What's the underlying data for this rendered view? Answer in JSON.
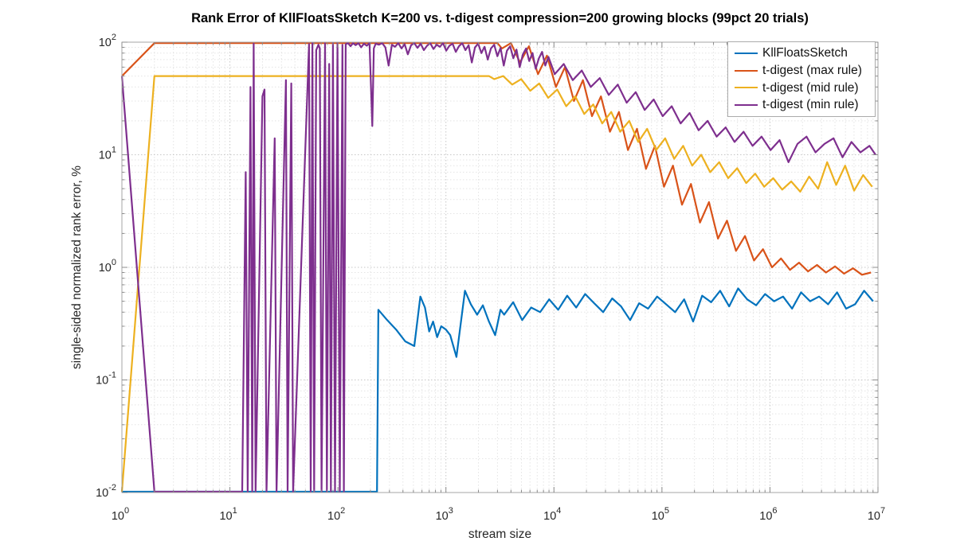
{
  "figure_title": "Rank Error of KllFloatsSketch K=200 vs. t-digest compression=200 growing blocks (99pct 20 trials)",
  "axes_style": {
    "frame_color": "#a6a6a6",
    "tick_color": "#8c8c8c",
    "grid_major_color": "#c6c6c6",
    "grid_minor_color": "#e4e4e4",
    "tick_label_color": "#262626",
    "background": "#ffffff"
  },
  "legend": {
    "position": "top-right",
    "items": [
      "KllFloatsSketch",
      "t-digest (max rule)",
      "t-digest (mid rule)",
      "t-digest (min rule)"
    ]
  },
  "chart_data": {
    "type": "line",
    "title": "Rank Error of KllFloatsSketch K=200 vs. t-digest compression=200 growing blocks (99pct 20 trials)",
    "xlabel": "stream size",
    "ylabel": "single-sided normalized rank error, %",
    "x_scale": "log",
    "y_scale": "log",
    "xlim": [
      1,
      10000000
    ],
    "ylim": [
      0.01,
      100
    ],
    "x_tick_labels": [
      "10^0",
      "10^1",
      "10^2",
      "10^3",
      "10^4",
      "10^5",
      "10^6",
      "10^7"
    ],
    "y_tick_labels": [
      "10^-2",
      "10^-1",
      "10^0",
      "10^1",
      "10^2"
    ],
    "grid": "major and minor, dotted",
    "legend_position": "top-right",
    "series": [
      {
        "name": "KllFloatsSketch",
        "color": "#0072BD",
        "points": [
          [
            1,
            0.01
          ],
          [
            230,
            0.01
          ],
          [
            237,
            0.42
          ],
          [
            286,
            0.34
          ],
          [
            346,
            0.28
          ],
          [
            420,
            0.22
          ],
          [
            509,
            0.2
          ],
          [
            580,
            0.55
          ],
          [
            640,
            0.44
          ],
          [
            700,
            0.27
          ],
          [
            760,
            0.33
          ],
          [
            830,
            0.24
          ],
          [
            904,
            0.3
          ],
          [
            1000,
            0.28
          ],
          [
            1095,
            0.25
          ],
          [
            1250,
            0.16
          ],
          [
            1500,
            0.62
          ],
          [
            1700,
            0.47
          ],
          [
            1947,
            0.38
          ],
          [
            2200,
            0.46
          ],
          [
            2500,
            0.33
          ],
          [
            2858,
            0.25
          ],
          [
            3200,
            0.42
          ],
          [
            3462,
            0.38
          ],
          [
            4194,
            0.49
          ],
          [
            5081,
            0.34
          ],
          [
            6155,
            0.44
          ],
          [
            7457,
            0.4
          ],
          [
            9033,
            0.52
          ],
          [
            10943,
            0.42
          ],
          [
            13257,
            0.56
          ],
          [
            16060,
            0.44
          ],
          [
            19456,
            0.58
          ],
          [
            23570,
            0.48
          ],
          [
            28554,
            0.4
          ],
          [
            34592,
            0.53
          ],
          [
            41907,
            0.45
          ],
          [
            50768,
            0.34
          ],
          [
            61503,
            0.48
          ],
          [
            74508,
            0.43
          ],
          [
            90263,
            0.55
          ],
          [
            109350,
            0.47
          ],
          [
            132470,
            0.4
          ],
          [
            160480,
            0.52
          ],
          [
            194410,
            0.33
          ],
          [
            235520,
            0.56
          ],
          [
            285320,
            0.49
          ],
          [
            345650,
            0.62
          ],
          [
            418740,
            0.45
          ],
          [
            507280,
            0.65
          ],
          [
            614540,
            0.52
          ],
          [
            744480,
            0.46
          ],
          [
            901900,
            0.58
          ],
          [
            1092600,
            0.5
          ],
          [
            1323600,
            0.55
          ],
          [
            1603500,
            0.43
          ],
          [
            1942500,
            0.6
          ],
          [
            2353200,
            0.5
          ],
          [
            2850800,
            0.55
          ],
          [
            3453600,
            0.47
          ],
          [
            4183900,
            0.6
          ],
          [
            5068600,
            0.43
          ],
          [
            6140400,
            0.47
          ],
          [
            7438800,
            0.62
          ],
          [
            9011800,
            0.5
          ]
        ]
      },
      {
        "name": "t-digest (max rule)",
        "color": "#D95319",
        "points": [
          [
            1,
            50
          ],
          [
            2,
            100
          ],
          [
            3000,
            100
          ],
          [
            3300,
            88
          ],
          [
            4000,
            100
          ],
          [
            4850,
            66
          ],
          [
            5870,
            92
          ],
          [
            7120,
            52
          ],
          [
            8620,
            76
          ],
          [
            10440,
            40
          ],
          [
            12650,
            60
          ],
          [
            15330,
            30
          ],
          [
            18570,
            46
          ],
          [
            22500,
            22
          ],
          [
            27260,
            33
          ],
          [
            33020,
            16
          ],
          [
            40010,
            24
          ],
          [
            48470,
            11
          ],
          [
            58720,
            17
          ],
          [
            71140,
            7.5
          ],
          [
            86190,
            12
          ],
          [
            104420,
            5.2
          ],
          [
            126500,
            8
          ],
          [
            153260,
            3.6
          ],
          [
            185680,
            5.5
          ],
          [
            224960,
            2.5
          ],
          [
            272550,
            3.8
          ],
          [
            330200,
            1.8
          ],
          [
            400060,
            2.6
          ],
          [
            484670,
            1.4
          ],
          [
            587190,
            1.9
          ],
          [
            711380,
            1.15
          ],
          [
            861870,
            1.45
          ],
          [
            1044180,
            1.0
          ],
          [
            1265070,
            1.2
          ],
          [
            1532620,
            0.95
          ],
          [
            1856830,
            1.1
          ],
          [
            2249620,
            0.92
          ],
          [
            2725500,
            1.05
          ],
          [
            3302030,
            0.9
          ],
          [
            4000600,
            1.02
          ],
          [
            4846700,
            0.88
          ],
          [
            5871900,
            0.98
          ],
          [
            7113800,
            0.86
          ],
          [
            8618700,
            0.9
          ]
        ]
      },
      {
        "name": "t-digest (mid rule)",
        "color": "#EDB120",
        "points": [
          [
            1,
            0.01
          ],
          [
            2,
            50
          ],
          [
            2500,
            50
          ],
          [
            2800,
            47
          ],
          [
            3392,
            50
          ],
          [
            4110,
            42
          ],
          [
            4979,
            47
          ],
          [
            6032,
            37
          ],
          [
            7308,
            43
          ],
          [
            8853,
            32
          ],
          [
            10725,
            38
          ],
          [
            12993,
            27
          ],
          [
            15740,
            33
          ],
          [
            19069,
            23
          ],
          [
            23101,
            28
          ],
          [
            27986,
            19
          ],
          [
            33904,
            24
          ],
          [
            41073,
            16
          ],
          [
            49758,
            20
          ],
          [
            60280,
            13
          ],
          [
            73026,
            17
          ],
          [
            88468,
            11
          ],
          [
            107175,
            14
          ],
          [
            129838,
            9.2
          ],
          [
            157294,
            12
          ],
          [
            190555,
            8.0
          ],
          [
            230850,
            10
          ],
          [
            279666,
            7.0
          ],
          [
            338805,
            8.6
          ],
          [
            410448,
            6.2
          ],
          [
            497241,
            7.6
          ],
          [
            602387,
            5.6
          ],
          [
            729767,
            6.8
          ],
          [
            884082,
            5.2
          ],
          [
            1071030,
            6.2
          ],
          [
            1297510,
            4.9
          ],
          [
            1571880,
            5.8
          ],
          [
            1904260,
            4.7
          ],
          [
            2306930,
            6.4
          ],
          [
            2794740,
            5.0
          ],
          [
            3385700,
            8.6
          ],
          [
            4101640,
            5.4
          ],
          [
            4968980,
            8.0
          ],
          [
            6019730,
            4.8
          ],
          [
            7292670,
            6.6
          ],
          [
            8834820,
            5.2
          ]
        ]
      },
      {
        "name": "t-digest (min rule)",
        "color": "#7E2F8E",
        "points": [
          [
            1,
            50
          ],
          [
            2,
            0.01
          ],
          [
            13,
            0.01
          ],
          [
            14,
            7
          ],
          [
            14.6,
            0.01
          ],
          [
            15.5,
            40
          ],
          [
            16.1,
            0.01
          ],
          [
            16.6,
            97
          ],
          [
            17.3,
            0.01
          ],
          [
            20,
            33
          ],
          [
            20.9,
            38
          ],
          [
            21.8,
            0.01
          ],
          [
            26,
            14
          ],
          [
            27,
            0.01
          ],
          [
            33,
            46
          ],
          [
            34.2,
            0.01
          ],
          [
            37,
            43
          ],
          [
            38.5,
            0.01
          ],
          [
            54,
            96
          ],
          [
            56,
            0.01
          ],
          [
            58,
            100
          ],
          [
            60.2,
            0.01
          ],
          [
            63,
            85
          ],
          [
            66,
            95
          ],
          [
            68,
            88
          ],
          [
            70.5,
            0.01
          ],
          [
            76,
            100
          ],
          [
            79,
            0.01
          ],
          [
            83,
            64
          ],
          [
            86,
            0.01
          ],
          [
            90,
            100
          ],
          [
            94,
            0.01
          ],
          [
            99,
            100
          ],
          [
            104,
            0.01
          ],
          [
            110,
            95
          ],
          [
            113.5,
            0.01
          ],
          [
            118,
            96
          ],
          [
            124,
            100
          ],
          [
            131,
            92
          ],
          [
            138,
            99
          ],
          [
            146,
            94
          ],
          [
            155,
            100
          ],
          [
            164,
            90
          ],
          [
            174,
            97
          ],
          [
            185,
            93
          ],
          [
            196,
            99
          ],
          [
            208,
            18
          ],
          [
            215,
            88
          ],
          [
            224,
            97
          ],
          [
            240,
            95
          ],
          [
            257,
            99
          ],
          [
            275,
            90
          ],
          [
            295,
            62
          ],
          [
            316,
            95
          ],
          [
            338,
            91
          ],
          [
            362,
            99
          ],
          [
            388,
            88
          ],
          [
            415,
            96
          ],
          [
            444,
            78
          ],
          [
            476,
            94
          ],
          [
            509,
            99
          ],
          [
            545,
            89
          ],
          [
            584,
            97
          ],
          [
            625,
            85
          ],
          [
            669,
            93
          ],
          [
            716,
            99
          ],
          [
            767,
            87
          ],
          [
            821,
            95
          ],
          [
            879,
            91
          ],
          [
            941,
            98
          ],
          [
            1007,
            84
          ],
          [
            1078,
            93
          ],
          [
            1154,
            97
          ],
          [
            1235,
            82
          ],
          [
            1322,
            92
          ],
          [
            1415,
            99
          ],
          [
            1515,
            85
          ],
          [
            1622,
            94
          ],
          [
            1736,
            66
          ],
          [
            1858,
            90
          ],
          [
            1989,
            97
          ],
          [
            2129,
            80
          ],
          [
            2279,
            91
          ],
          [
            2440,
            70
          ],
          [
            2612,
            88
          ],
          [
            2796,
            95
          ],
          [
            2993,
            75
          ],
          [
            3204,
            89
          ],
          [
            3430,
            62
          ],
          [
            3671,
            84
          ],
          [
            3930,
            92
          ],
          [
            4207,
            72
          ],
          [
            4503,
            86
          ],
          [
            4820,
            60
          ],
          [
            5160,
            78
          ],
          [
            5523,
            88
          ],
          [
            5912,
            68
          ],
          [
            6329,
            80
          ],
          [
            6775,
            58
          ],
          [
            7252,
            72
          ],
          [
            7763,
            82
          ],
          [
            8310,
            62
          ],
          [
            8895,
            74
          ],
          [
            10180,
            52
          ],
          [
            12330,
            64
          ],
          [
            14940,
            46
          ],
          [
            18100,
            56
          ],
          [
            21920,
            40
          ],
          [
            26550,
            48
          ],
          [
            32160,
            34
          ],
          [
            38960,
            42
          ],
          [
            47190,
            29
          ],
          [
            57160,
            36
          ],
          [
            69230,
            25
          ],
          [
            83860,
            31
          ],
          [
            101570,
            22
          ],
          [
            123030,
            27
          ],
          [
            149020,
            19
          ],
          [
            180500,
            23.5
          ],
          [
            218630,
            16.5
          ],
          [
            264820,
            20
          ],
          [
            320760,
            14.5
          ],
          [
            388520,
            17.5
          ],
          [
            470600,
            13
          ],
          [
            570000,
            16
          ],
          [
            690440,
            12
          ],
          [
            836250,
            14.5
          ],
          [
            1012860,
            11
          ],
          [
            1226830,
            13.5
          ],
          [
            1486010,
            8.6
          ],
          [
            1799950,
            12.5
          ],
          [
            2180230,
            14.5
          ],
          [
            2640850,
            10.5
          ],
          [
            3198790,
            12.5
          ],
          [
            3874600,
            14
          ],
          [
            4693200,
            9.5
          ],
          [
            5684750,
            13
          ],
          [
            6885700,
            10.5
          ],
          [
            8340420,
            12
          ],
          [
            9500000,
            10
          ]
        ]
      }
    ]
  }
}
